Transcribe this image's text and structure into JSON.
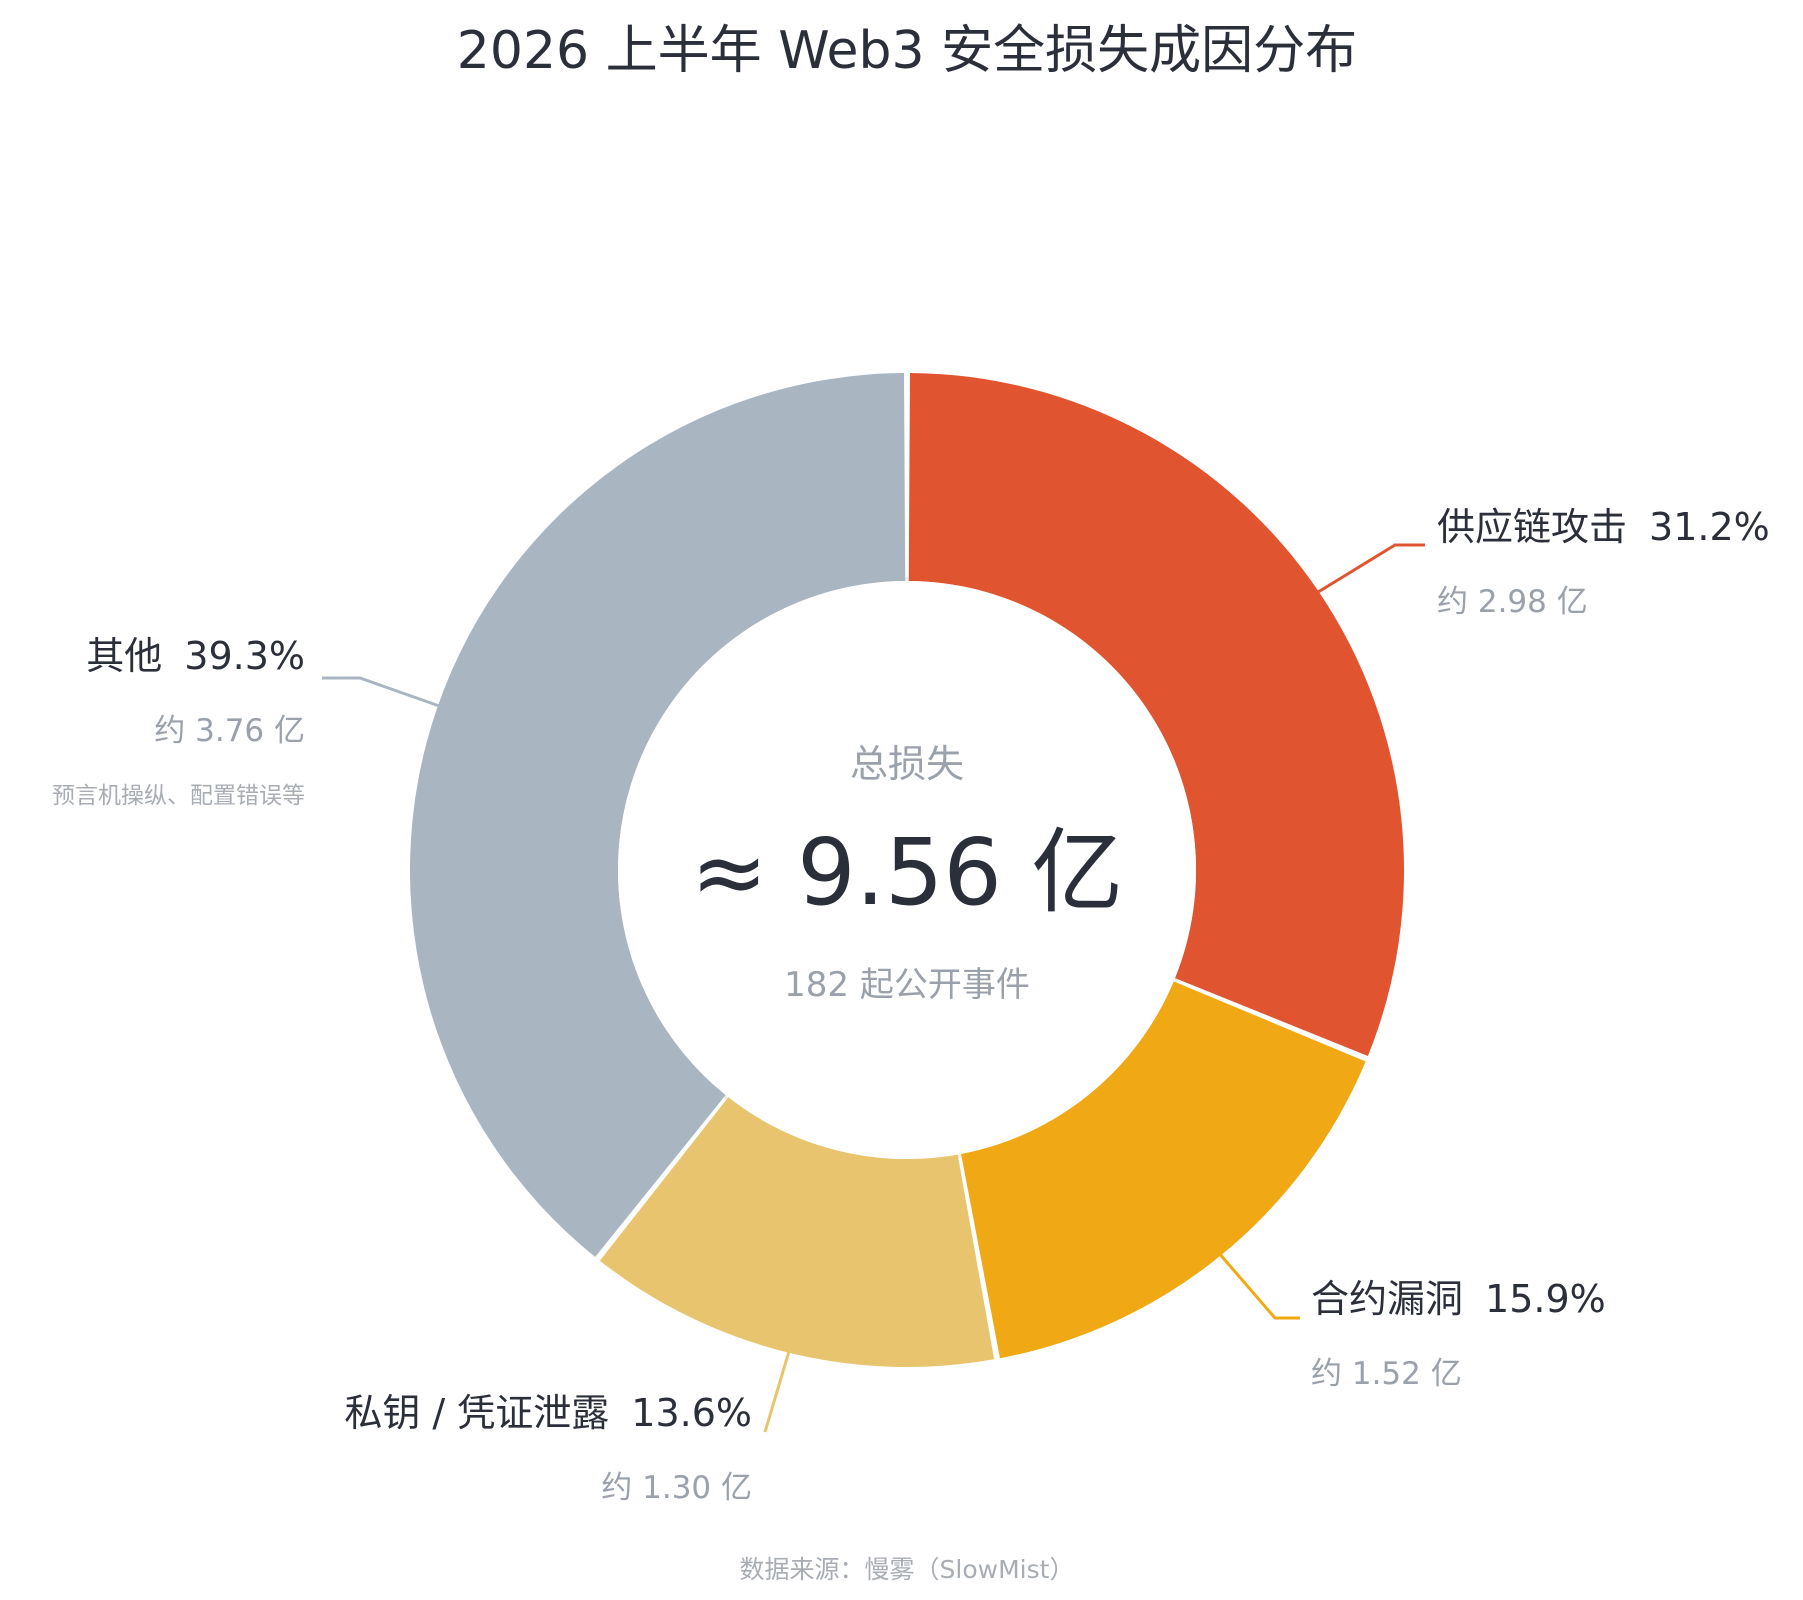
{
  "chart_data": {
    "type": "pie",
    "subtype": "donut",
    "title": "2026 上半年 Web3 安全损失成因分布",
    "center": {
      "caption": "总损失",
      "value": "≈ 9.56 亿",
      "subcaption": "182 起公开事件"
    },
    "slices": [
      {
        "name": "供应链攻击",
        "percent": 31.2,
        "percent_label": "31.2%",
        "amount_label": "约 2.98 亿",
        "note": "",
        "color": "#e05530"
      },
      {
        "name": "合约漏洞",
        "percent": 15.9,
        "percent_label": "15.9%",
        "amount_label": "约 1.52 亿",
        "note": "",
        "color": "#f0a814"
      },
      {
        "name": "私钥 / 凭证泄露",
        "percent": 13.6,
        "percent_label": "13.6%",
        "amount_label": "约 1.30 亿",
        "note": "",
        "color": "#e8c46e"
      },
      {
        "name": "其他",
        "percent": 39.3,
        "percent_label": "39.3%",
        "amount_label": "约 3.76 亿",
        "note": "预言机操纵、配置错误等",
        "color": "#a9b6c2"
      }
    ],
    "source": "数据来源：慢雾（SlowMist）"
  }
}
